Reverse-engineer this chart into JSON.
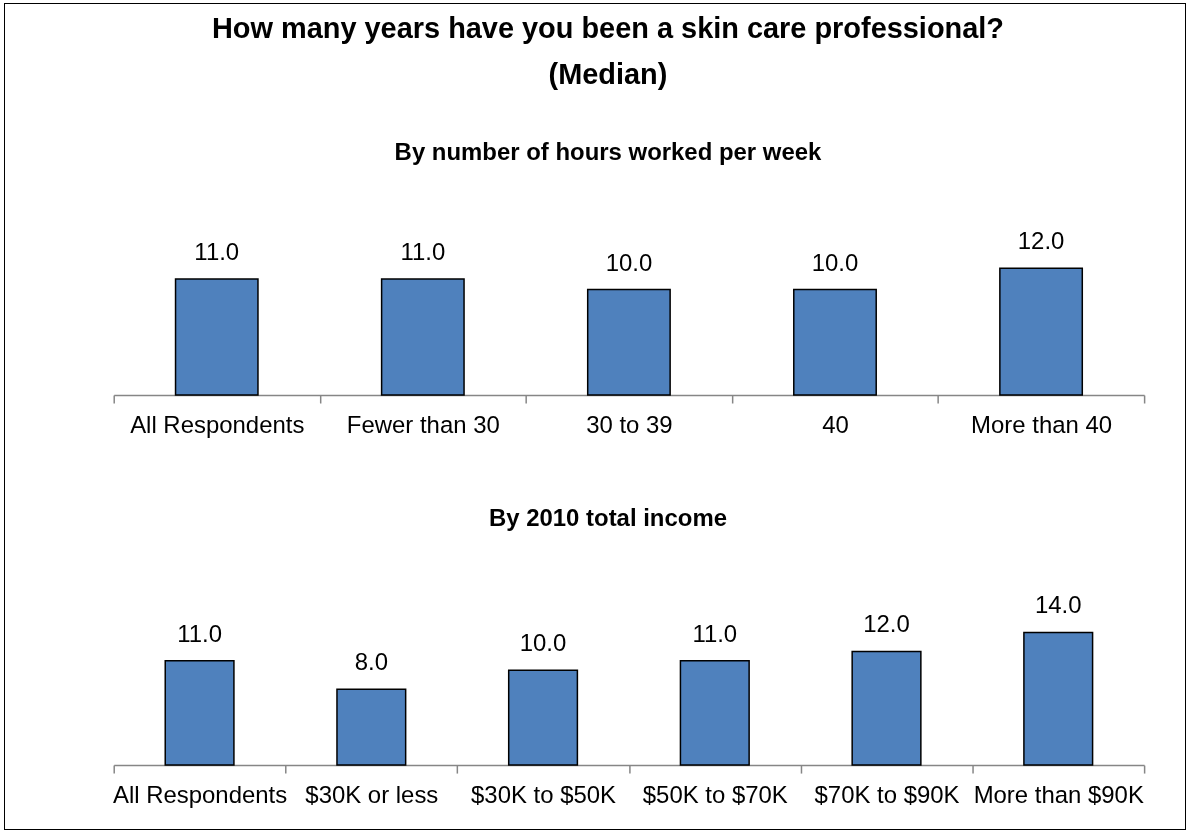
{
  "chart_data": [
    {
      "type": "bar",
      "title": "How many years have you been a skin care professional?\n(Median)",
      "subtitle": "By number of hours worked per week",
      "categories": [
        "All Respondents",
        "Fewer than 30",
        "30 to 39",
        "40",
        "More than 40"
      ],
      "values": [
        11,
        11,
        10,
        10,
        12
      ],
      "value_labels": [
        "11.0",
        "11.0",
        "10.0",
        "10.0",
        "12.0"
      ],
      "color": "#4f81bd",
      "tick_labels": "x"
    },
    {
      "type": "bar",
      "subtitle": "By 2010 total income",
      "categories": [
        "All Respondents",
        "$30K or less",
        "$30K to $50K",
        "$50K to $70K",
        "$70K to $90K",
        "More than $90K"
      ],
      "values": [
        11,
        8,
        10,
        11,
        12,
        14
      ],
      "value_labels": [
        "11.0",
        "8.0",
        "10.0",
        "11.0",
        "12.0",
        "14.0"
      ],
      "color": "#4f81bd",
      "tick_labels": "x"
    }
  ]
}
